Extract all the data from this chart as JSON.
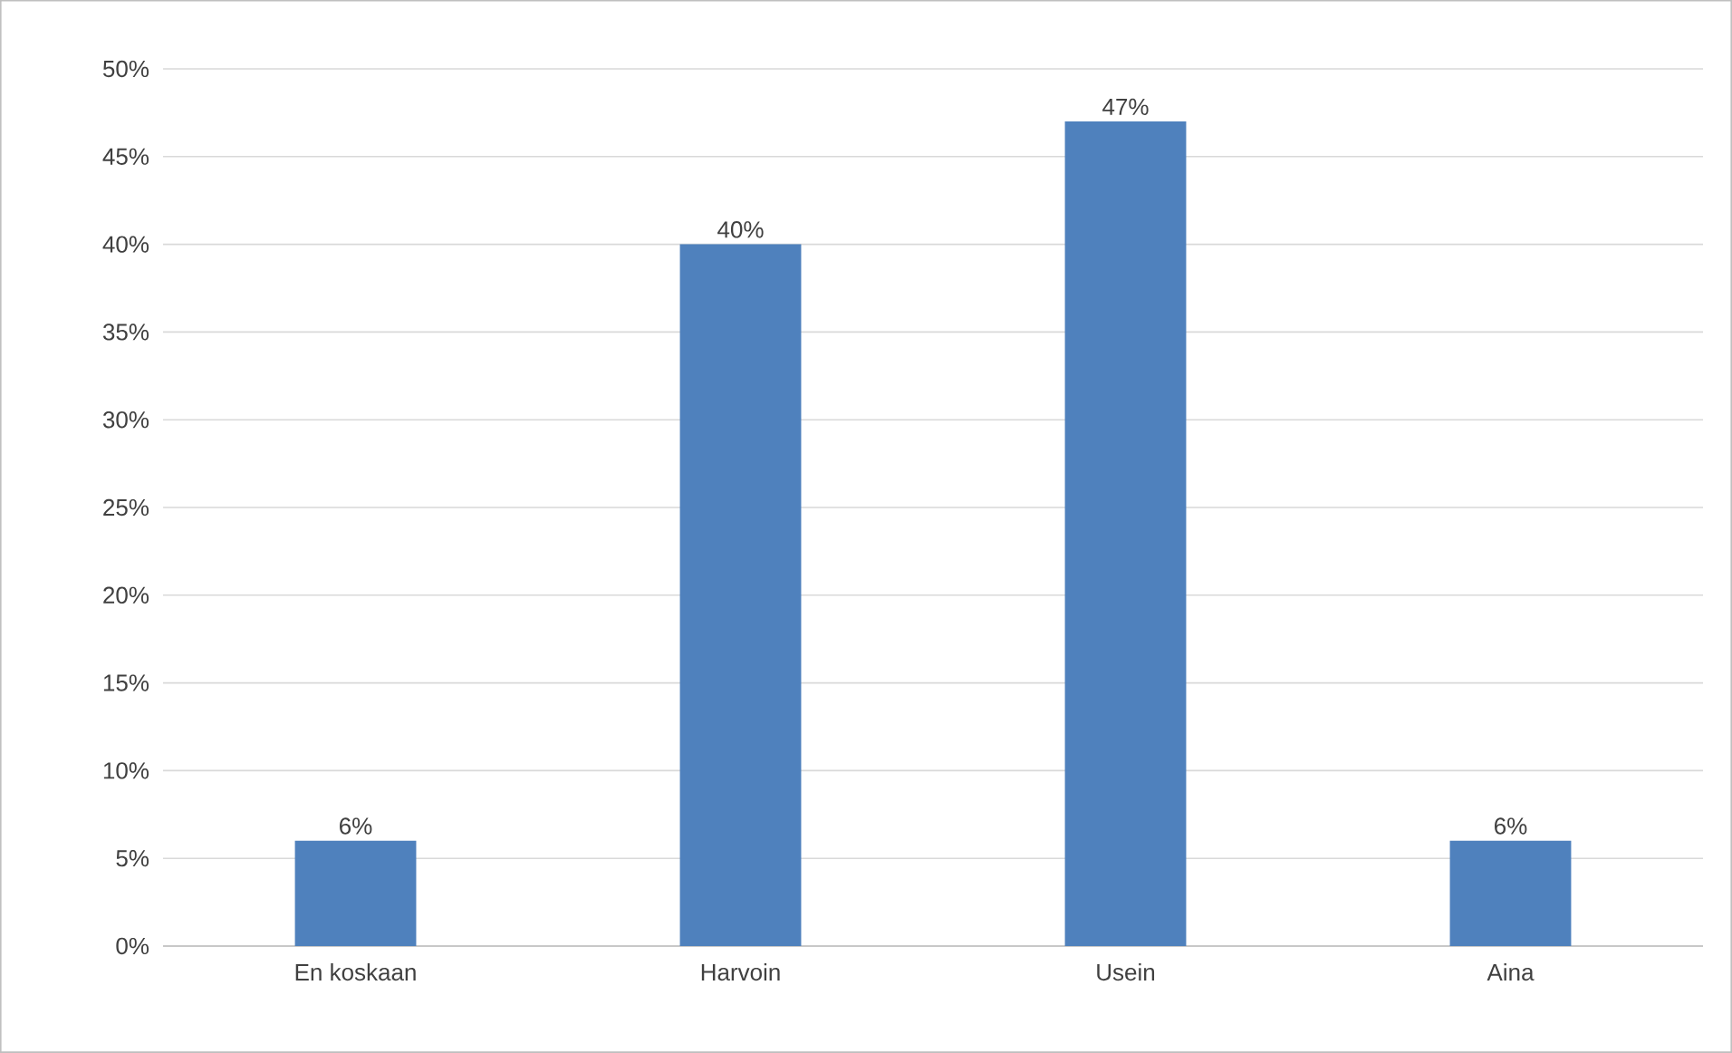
{
  "chart_data": {
    "type": "bar",
    "categories": [
      "En koskaan",
      "Harvoin",
      "Usein",
      "Aina"
    ],
    "values": [
      6,
      40,
      47,
      6
    ],
    "value_labels": [
      "6%",
      "40%",
      "47%",
      "6%"
    ],
    "color": "#4f81bd",
    "ylim": [
      0,
      50
    ],
    "yticks": [
      {
        "value": 0,
        "label": "0%"
      },
      {
        "value": 5,
        "label": "5%"
      },
      {
        "value": 10,
        "label": "10%"
      },
      {
        "value": 15,
        "label": "15%"
      },
      {
        "value": 20,
        "label": "20%"
      },
      {
        "value": 25,
        "label": "25%"
      },
      {
        "value": 30,
        "label": "30%"
      },
      {
        "value": 35,
        "label": "35%"
      },
      {
        "value": 40,
        "label": "40%"
      },
      {
        "value": 45,
        "label": "45%"
      },
      {
        "value": 50,
        "label": "50%"
      }
    ],
    "grid": "y"
  }
}
